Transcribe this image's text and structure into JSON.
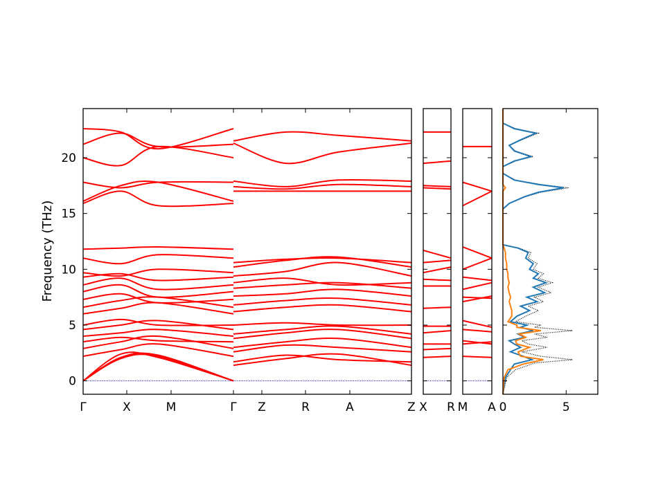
{
  "chart_data": {
    "type": "line",
    "title": "",
    "ylabel": "Frequency (THz)",
    "ylim": [
      -1.2,
      24.4
    ],
    "yticks": [
      0,
      5,
      10,
      15,
      20
    ],
    "colors": {
      "bands": "#ff0000",
      "zero_line": "#0000cc",
      "dos_total": "#000000",
      "dos_1": "#1f77b4",
      "dos_2": "#ff7f0e"
    },
    "band_panels": [
      {
        "segments": [
          {
            "labels": [
              "Γ",
              "X",
              "M",
              "Γ"
            ],
            "x": [
              0,
              0.5,
              1.0,
              2.0
            ]
          },
          {
            "labels": [
              "Z",
              "R",
              "A",
              "Z"
            ],
            "x": [
              0,
              1.0,
              2.0,
              3.4
            ]
          }
        ],
        "point_labels": [
          "Γ",
          "X",
          "M",
          "Γ",
          "Z",
          "R",
          "A",
          "Z"
        ],
        "bands_gamma_x_m_gamma": [
          [
            0.0,
            2.0,
            2.2,
            0.0
          ],
          [
            0.0,
            2.1,
            2.3,
            0.0
          ],
          [
            0.0,
            2.4,
            2.1,
            0.0
          ],
          [
            2.2,
            2.8,
            3.3,
            2.2
          ],
          [
            2.9,
            3.5,
            4.0,
            2.9
          ],
          [
            3.5,
            3.9,
            3.6,
            3.5
          ],
          [
            4.0,
            4.3,
            4.6,
            4.0
          ],
          [
            4.6,
            5.0,
            5.4,
            4.6
          ],
          [
            5.0,
            5.5,
            5.0,
            5.0
          ],
          [
            6.0,
            6.5,
            7.0,
            6.0
          ],
          [
            6.6,
            7.2,
            7.5,
            6.6
          ],
          [
            7.3,
            7.8,
            7.0,
            7.3
          ],
          [
            8.0,
            8.6,
            7.5,
            8.0
          ],
          [
            8.6,
            9.2,
            8.2,
            8.6
          ],
          [
            9.3,
            9.6,
            9.0,
            9.3
          ],
          [
            9.7,
            9.4,
            10.0,
            9.7
          ],
          [
            11.0,
            10.5,
            11.3,
            11.0
          ],
          [
            11.8,
            11.9,
            12.0,
            11.8
          ],
          [
            15.9,
            17.0,
            15.7,
            15.9
          ],
          [
            16.1,
            17.5,
            17.8,
            16.1
          ],
          [
            17.8,
            17.3,
            17.8,
            17.8
          ],
          [
            20.0,
            19.3,
            21.0,
            20.0
          ],
          [
            21.2,
            22.2,
            21.0,
            21.2
          ],
          [
            22.6,
            22.3,
            20.8,
            22.6
          ]
        ],
        "bands_z_r_a_z": [
          [
            1.4,
            2.0,
            2.4,
            1.4
          ],
          [
            1.7,
            2.3,
            1.9,
            1.7
          ],
          [
            2.6,
            3.2,
            3.0,
            2.6
          ],
          [
            3.0,
            3.5,
            3.8,
            3.0
          ],
          [
            3.8,
            4.3,
            4.6,
            3.8
          ],
          [
            4.2,
            4.6,
            4.9,
            4.2
          ],
          [
            5.0,
            5.2,
            5.0,
            5.0
          ],
          [
            6.2,
            6.6,
            6.8,
            6.2
          ],
          [
            6.8,
            7.2,
            7.4,
            6.8
          ],
          [
            7.6,
            7.8,
            8.2,
            7.6
          ],
          [
            8.3,
            8.6,
            8.8,
            8.3
          ],
          [
            8.8,
            9.2,
            8.6,
            8.8
          ],
          [
            9.4,
            9.8,
            10.6,
            9.4
          ],
          [
            10.2,
            10.8,
            11.1,
            10.2
          ],
          [
            10.6,
            10.9,
            11.0,
            10.6
          ],
          [
            17.0,
            17.0,
            17.0,
            17.0
          ],
          [
            17.4,
            17.2,
            17.6,
            17.4
          ],
          [
            17.9,
            17.4,
            18.0,
            17.9
          ],
          [
            21.3,
            19.5,
            20.5,
            21.3
          ],
          [
            21.5,
            22.3,
            22.0,
            21.5
          ]
        ]
      },
      {
        "labels": [
          "X",
          "R"
        ],
        "bands": [
          [
            2.1,
            2.2
          ],
          [
            2.8,
            2.9
          ],
          [
            3.3,
            3.3
          ],
          [
            4.3,
            4.5
          ],
          [
            4.9,
            4.9
          ],
          [
            6.5,
            6.6
          ],
          [
            8.5,
            8.5
          ],
          [
            9.1,
            9.0
          ],
          [
            9.7,
            10.2
          ],
          [
            10.6,
            10.8
          ],
          [
            11.7,
            11.0
          ],
          [
            17.3,
            17.2
          ],
          [
            17.5,
            17.4
          ],
          [
            19.5,
            19.7
          ],
          [
            22.3,
            22.3
          ]
        ]
      },
      {
        "labels": [
          "M",
          "A"
        ],
        "bands": [
          [
            2.2,
            2.1
          ],
          [
            3.3,
            3.5
          ],
          [
            3.6,
            3.3
          ],
          [
            4.6,
            4.4
          ],
          [
            5.4,
            4.8
          ],
          [
            7.1,
            7.6
          ],
          [
            7.5,
            7.4
          ],
          [
            8.2,
            8.8
          ],
          [
            9.3,
            9.0
          ],
          [
            10.0,
            11.0
          ],
          [
            12.0,
            11.0
          ],
          [
            15.7,
            17.0
          ],
          [
            17.8,
            17.0
          ],
          [
            21.0,
            21.0
          ]
        ]
      }
    ],
    "dos": {
      "xlim": [
        0,
        7.5
      ],
      "xticks": [
        0,
        5
      ],
      "series": [
        {
          "key": "total",
          "style": "dotted",
          "points": [
            [
              0,
              -1.2
            ],
            [
              0.3,
              0.3
            ],
            [
              1,
              1.0
            ],
            [
              2.5,
              1.6
            ],
            [
              5.5,
              1.9
            ],
            [
              3,
              2.2
            ],
            [
              1.5,
              2.6
            ],
            [
              3.5,
              3.0
            ],
            [
              2,
              3.3
            ],
            [
              1.5,
              3.6
            ],
            [
              3.5,
              3.9
            ],
            [
              2.5,
              4.2
            ],
            [
              5.5,
              4.5
            ],
            [
              2.5,
              4.8
            ],
            [
              3,
              5.0
            ],
            [
              1,
              5.3
            ],
            [
              1.8,
              5.8
            ],
            [
              2.8,
              6.3
            ],
            [
              2,
              6.7
            ],
            [
              3.2,
              7.1
            ],
            [
              2.5,
              7.5
            ],
            [
              3.8,
              7.9
            ],
            [
              2.8,
              8.4
            ],
            [
              3.9,
              8.8
            ],
            [
              2.8,
              9.2
            ],
            [
              3.2,
              9.6
            ],
            [
              2.4,
              10.0
            ],
            [
              2.7,
              10.5
            ],
            [
              2,
              11.0
            ],
            [
              2.2,
              11.5
            ],
            [
              1.3,
              11.9
            ],
            [
              0,
              12.2
            ],
            [
              0,
              15.4
            ],
            [
              0.5,
              15.9
            ],
            [
              1.8,
              16.5
            ],
            [
              3,
              16.9
            ],
            [
              5.2,
              17.3
            ],
            [
              3,
              17.6
            ],
            [
              1,
              18.0
            ],
            [
              0,
              18.6
            ],
            [
              0,
              19.2
            ],
            [
              1,
              19.7
            ],
            [
              2.4,
              20.1
            ],
            [
              1,
              20.6
            ],
            [
              0.5,
              21.1
            ],
            [
              1.5,
              21.6
            ],
            [
              2.8,
              22.2
            ],
            [
              1,
              22.6
            ],
            [
              0,
              23.1
            ],
            [
              0,
              24.4
            ]
          ]
        },
        {
          "key": "dos1",
          "style": "solid",
          "points": [
            [
              0,
              -1.2
            ],
            [
              0.2,
              0.3
            ],
            [
              0.6,
              1.0
            ],
            [
              0.9,
              1.5
            ],
            [
              2.3,
              1.9
            ],
            [
              1.6,
              2.2
            ],
            [
              0.6,
              2.6
            ],
            [
              1.4,
              3.0
            ],
            [
              0.9,
              3.3
            ],
            [
              0.5,
              3.6
            ],
            [
              1.7,
              3.9
            ],
            [
              1.2,
              4.2
            ],
            [
              2.4,
              4.5
            ],
            [
              1.4,
              4.8
            ],
            [
              1.9,
              5.0
            ],
            [
              0.6,
              5.3
            ],
            [
              1.1,
              5.8
            ],
            [
              2.1,
              6.3
            ],
            [
              1.4,
              6.7
            ],
            [
              2.7,
              7.1
            ],
            [
              1.9,
              7.5
            ],
            [
              3.3,
              7.9
            ],
            [
              2.4,
              8.4
            ],
            [
              3.4,
              8.8
            ],
            [
              2.4,
              9.2
            ],
            [
              2.8,
              9.6
            ],
            [
              2.1,
              10.0
            ],
            [
              2.4,
              10.5
            ],
            [
              1.8,
              11.0
            ],
            [
              2,
              11.5
            ],
            [
              1.2,
              11.9
            ],
            [
              0,
              12.2
            ],
            [
              0,
              15.4
            ],
            [
              0.5,
              15.9
            ],
            [
              1.7,
              16.5
            ],
            [
              2.8,
              16.9
            ],
            [
              4.8,
              17.3
            ],
            [
              2.8,
              17.6
            ],
            [
              0.9,
              18.0
            ],
            [
              0,
              18.6
            ],
            [
              0,
              19.2
            ],
            [
              0.9,
              19.7
            ],
            [
              2.2,
              20.1
            ],
            [
              0.9,
              20.6
            ],
            [
              0.5,
              21.1
            ],
            [
              1.4,
              21.6
            ],
            [
              2.6,
              22.2
            ],
            [
              0.9,
              22.6
            ],
            [
              0,
              23.1
            ],
            [
              0,
              24.4
            ]
          ]
        },
        {
          "key": "dos2",
          "style": "solid",
          "points": [
            [
              0,
              -1.2
            ],
            [
              0.1,
              0.3
            ],
            [
              0.4,
              1.0
            ],
            [
              1.6,
              1.5
            ],
            [
              3.2,
              1.9
            ],
            [
              1.4,
              2.2
            ],
            [
              1.2,
              2.6
            ],
            [
              2.1,
              3.0
            ],
            [
              1.1,
              3.3
            ],
            [
              1,
              3.6
            ],
            [
              1.8,
              3.9
            ],
            [
              1.3,
              4.2
            ],
            [
              3,
              4.5
            ],
            [
              1.1,
              4.8
            ],
            [
              1.1,
              5.0
            ],
            [
              0.4,
              5.3
            ],
            [
              0.7,
              5.8
            ],
            [
              0.7,
              6.3
            ],
            [
              0.6,
              6.7
            ],
            [
              0.5,
              7.1
            ],
            [
              0.6,
              7.5
            ],
            [
              0.5,
              7.9
            ],
            [
              0.4,
              8.4
            ],
            [
              0.5,
              8.8
            ],
            [
              0.4,
              9.2
            ],
            [
              0.4,
              9.6
            ],
            [
              0.3,
              10.0
            ],
            [
              0.3,
              10.5
            ],
            [
              0.2,
              11.0
            ],
            [
              0.2,
              11.5
            ],
            [
              0.1,
              11.9
            ],
            [
              0,
              12.2
            ],
            [
              0,
              17.0
            ],
            [
              0.2,
              17.3
            ],
            [
              0,
              17.6
            ],
            [
              0,
              24.4
            ]
          ]
        }
      ]
    }
  }
}
